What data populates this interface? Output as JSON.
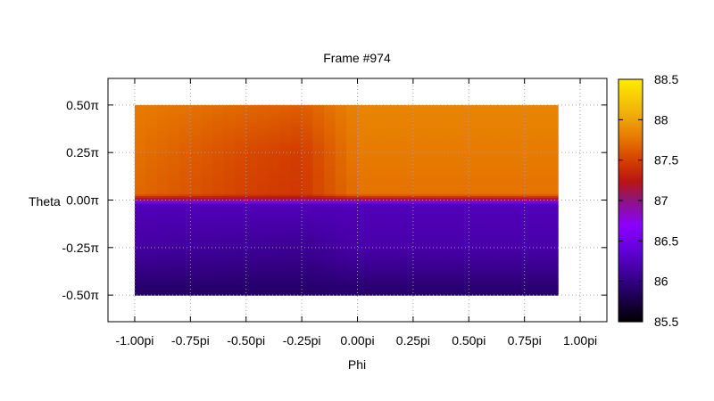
{
  "chart_data": {
    "type": "heatmap",
    "title": "Frame #974",
    "xlabel": "Phi",
    "ylabel": "Theta",
    "x_ticks": [
      "-1.00pi",
      "-0.75pi",
      "-0.50pi",
      "-0.25pi",
      "0.00pi",
      "0.25pi",
      "0.50pi",
      "0.75pi",
      "1.00pi"
    ],
    "x_tick_values": [
      -1.0,
      -0.75,
      -0.5,
      -0.25,
      0.0,
      0.25,
      0.5,
      0.75,
      1.0
    ],
    "y_ticks": [
      "0.50π",
      "0.25π",
      "0.00π",
      "-0.25π",
      "-0.50π"
    ],
    "y_tick_values": [
      0.5,
      0.25,
      0.0,
      -0.25,
      -0.5
    ],
    "xlim": [
      -1.12,
      1.12
    ],
    "ylim": [
      -0.64,
      0.64
    ],
    "data_extent": {
      "phi": [
        -1.0,
        0.9
      ],
      "theta": [
        -0.5,
        0.5
      ]
    },
    "colorbar": {
      "range": [
        85.5,
        88.5
      ],
      "ticks": [
        "88.5",
        "88",
        "87.5",
        "87",
        "86.5",
        "86",
        "85.5"
      ],
      "tick_values": [
        88.5,
        88.0,
        87.5,
        87.0,
        86.5,
        86.0,
        85.5
      ],
      "palette": "black-blue-purple-red-orange-yellow"
    },
    "grid": true,
    "phi_columns": [
      -1.0,
      -0.75,
      -0.5,
      -0.25,
      0.0,
      0.25,
      0.5,
      0.75,
      0.9
    ],
    "theta_rows": [
      0.5,
      0.25,
      0.03,
      0.0,
      -0.02,
      -0.25,
      -0.5
    ],
    "values": [
      [
        87.8,
        87.75,
        87.7,
        87.65,
        87.85,
        87.85,
        87.85,
        87.85,
        87.85
      ],
      [
        87.75,
        87.65,
        87.55,
        87.48,
        87.8,
        87.8,
        87.8,
        87.8,
        87.8
      ],
      [
        87.7,
        87.6,
        87.5,
        87.45,
        87.75,
        87.75,
        87.75,
        87.75,
        87.75
      ],
      [
        87.05,
        87.05,
        87.05,
        87.05,
        87.05,
        87.05,
        87.05,
        87.05,
        87.05
      ],
      [
        86.25,
        86.25,
        86.25,
        86.25,
        86.25,
        86.25,
        86.25,
        86.25,
        86.25
      ],
      [
        86.15,
        86.12,
        86.1,
        86.08,
        86.18,
        86.18,
        86.18,
        86.18,
        86.18
      ],
      [
        85.88,
        85.88,
        85.88,
        85.88,
        85.9,
        85.9,
        85.9,
        85.9,
        85.9
      ]
    ]
  }
}
